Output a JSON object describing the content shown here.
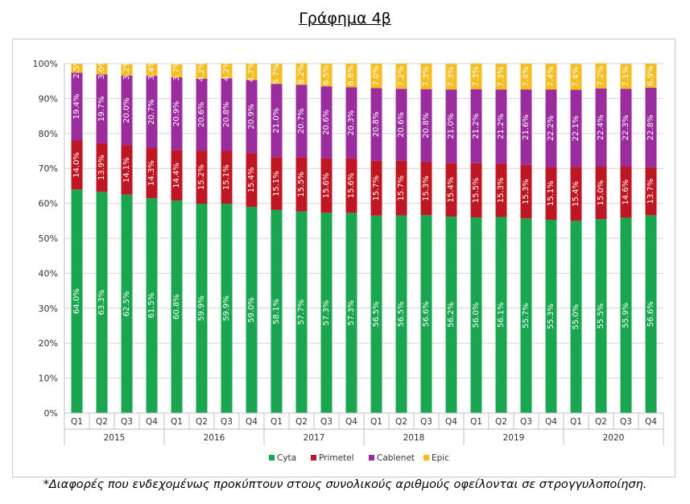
{
  "title": "Γράφημα 4β",
  "footnote": "*Διαφορές που ενδεχομένως προκύπτουν στους συνολικούς αριθμούς οφείλονται σε στρογγυλοποίηση.",
  "chart_data": {
    "type": "bar",
    "stacked": true,
    "title": "",
    "xlabel": "",
    "ylabel": "",
    "ylim": [
      0,
      100
    ],
    "yticks": [
      "0%",
      "10%",
      "20%",
      "30%",
      "40%",
      "50%",
      "60%",
      "70%",
      "80%",
      "90%",
      "100%"
    ],
    "grid": true,
    "legend_position": "bottom",
    "years": [
      "2015",
      "2016",
      "2017",
      "2018",
      "2019",
      "2020"
    ],
    "quarters": [
      "Q1",
      "Q2",
      "Q3",
      "Q4"
    ],
    "categories": [
      "Q1",
      "Q2",
      "Q3",
      "Q4",
      "Q1",
      "Q2",
      "Q3",
      "Q4",
      "Q1",
      "Q2",
      "Q3",
      "Q4",
      "Q1",
      "Q2",
      "Q3",
      "Q4",
      "Q1",
      "Q2",
      "Q3",
      "Q4",
      "Q1",
      "Q2",
      "Q3",
      "Q4"
    ],
    "series": [
      {
        "name": "Cyta",
        "color": "#1aa550",
        "values": [
          64.0,
          63.3,
          62.5,
          61.5,
          60.8,
          59.9,
          59.9,
          59.0,
          58.1,
          57.7,
          57.3,
          57.3,
          56.5,
          56.5,
          56.6,
          56.2,
          56.0,
          56.1,
          55.7,
          55.3,
          55.0,
          55.5,
          55.9,
          56.6
        ]
      },
      {
        "name": "Primetel",
        "color": "#be1622",
        "values": [
          14.0,
          13.9,
          14.1,
          14.3,
          14.4,
          15.2,
          15.1,
          15.4,
          15.1,
          15.5,
          15.6,
          15.6,
          15.7,
          15.7,
          15.3,
          15.4,
          15.5,
          15.3,
          15.3,
          15.1,
          15.4,
          15.0,
          14.6,
          13.7
        ]
      },
      {
        "name": "Cablenet",
        "color": "#9b2c9e",
        "values": [
          19.4,
          19.7,
          20.0,
          20.7,
          20.9,
          20.6,
          20.8,
          20.9,
          21.0,
          20.7,
          20.6,
          20.3,
          20.8,
          20.6,
          20.8,
          21.0,
          21.2,
          21.2,
          21.6,
          22.2,
          22.1,
          22.4,
          22.3,
          22.8
        ]
      },
      {
        "name": "Epic",
        "color": "#f5bd1f",
        "values": [
          2.5,
          3.0,
          3.2,
          3.4,
          3.7,
          4.2,
          4.2,
          4.7,
          5.7,
          6.2,
          6.5,
          6.8,
          7.0,
          7.2,
          7.3,
          7.3,
          7.3,
          7.3,
          7.4,
          7.4,
          7.4,
          7.2,
          7.1,
          6.9
        ]
      }
    ]
  }
}
